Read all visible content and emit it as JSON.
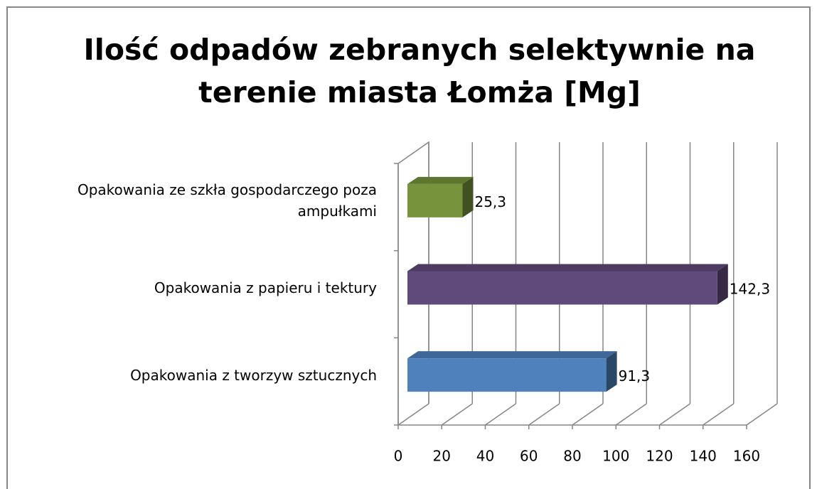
{
  "chart_data": {
    "type": "bar3d_horizontal",
    "title": "Ilość odpadów zebranych selektywnie na terenie miasta Łomża  [Mg]",
    "categories": [
      "Opakowania z tworzyw sztucznych",
      "Opakowania z papieru i tektury",
      "Opakowania ze szkła gospodarczego poza ampułkami"
    ],
    "values": [
      91.3,
      142.3,
      25.3
    ],
    "value_labels": [
      "91,3",
      "142,3",
      "25,3"
    ],
    "colors": [
      "#4f81bd",
      "#604a7b",
      "#77933c"
    ],
    "xlim": [
      0,
      160
    ],
    "xticks": [
      0,
      20,
      40,
      60,
      80,
      100,
      120,
      140,
      160
    ],
    "grid": true
  }
}
